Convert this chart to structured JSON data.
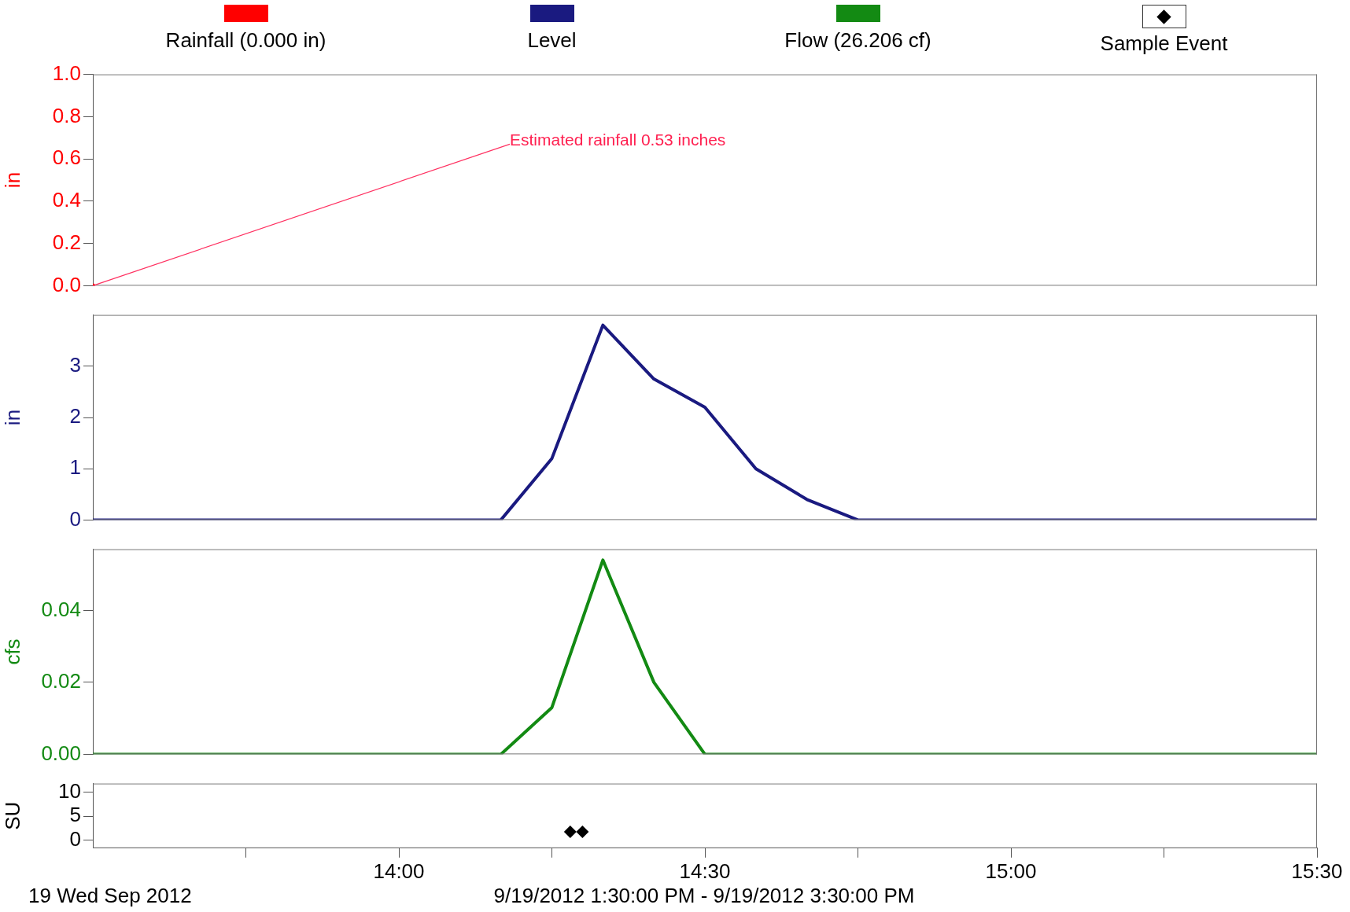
{
  "chart_data": [
    {
      "type": "line",
      "legend": "top",
      "grid": false,
      "tick_labels": "y",
      "xlim": [
        13.5,
        15.5
      ],
      "ylabel": "in",
      "ylim": [
        0,
        1.0
      ],
      "yticks": [
        {
          "value": 0,
          "label": "0.0"
        },
        {
          "value": 0.2,
          "label": "0.2"
        },
        {
          "value": 0.4,
          "label": "0.4"
        },
        {
          "value": 0.6,
          "label": "0.6"
        },
        {
          "value": 0.8,
          "label": "0.8"
        },
        {
          "value": 1,
          "label": "1.0"
        }
      ],
      "series": [
        {
          "name": "Rainfall (0.000 in)",
          "color": "#ff0000",
          "marker": "circle",
          "x": [
            13.5
          ],
          "values": [
            0
          ]
        }
      ],
      "annotations": [
        {
          "text": "Estimated rainfall 0.53 inches",
          "x": 13.5,
          "y": 0
        }
      ]
    },
    {
      "type": "line",
      "legend": "top",
      "grid": false,
      "tick_labels": "y",
      "xlim": [
        13.5,
        15.5
      ],
      "ylabel": "in",
      "ylim": [
        0,
        4
      ],
      "yticks": [
        0,
        1,
        2,
        3
      ],
      "series": [
        {
          "name": "Level",
          "color": "#1a1a80",
          "marker": "none",
          "x": [
            13.5,
            14.16667,
            14.25,
            14.33333,
            14.41667,
            14.5,
            14.58333,
            14.66667,
            14.75,
            15.5
          ],
          "values": [
            0,
            0,
            1.2,
            3.8,
            2.75,
            2.2,
            1.0,
            0.4,
            0,
            0
          ]
        }
      ]
    },
    {
      "type": "line",
      "legend": "top",
      "grid": false,
      "tick_labels": "y",
      "xlim": [
        13.5,
        15.5
      ],
      "ylabel": "cfs",
      "ylim": [
        0,
        0.057
      ],
      "yticks": [
        {
          "value": 0,
          "label": "0.00"
        },
        {
          "value": 0.02,
          "label": "0.02"
        },
        {
          "value": 0.04,
          "label": "0.04"
        }
      ],
      "series": [
        {
          "name": "Flow (26.206 cf)",
          "color": "#138a13",
          "marker": "none",
          "x": [
            13.5,
            14.16667,
            14.25,
            14.33333,
            14.41667,
            14.5,
            15.5
          ],
          "values": [
            0,
            0,
            0.013,
            0.054,
            0.02,
            0,
            0
          ]
        }
      ]
    },
    {
      "type": "scatter",
      "legend": "top",
      "grid": false,
      "xlim": [
        13.5,
        15.5
      ],
      "xticks": [
        {
          "value": 13.75,
          "label": null
        },
        {
          "value": 14,
          "label": "14:00"
        },
        {
          "value": 14.25,
          "label": null
        },
        {
          "value": 14.5,
          "label": "14:30"
        },
        {
          "value": 14.75,
          "label": null
        },
        {
          "value": 15,
          "label": "15:00"
        },
        {
          "value": 15.25,
          "label": null
        },
        {
          "value": 15.5,
          "label": "15:30"
        }
      ],
      "ylabel": "SU",
      "ylim": [
        -1.6,
        11.8
      ],
      "yticks": [
        0,
        5,
        10
      ],
      "series": [
        {
          "name": "Sample Event",
          "color": "#000000",
          "marker": "diamond",
          "x": [
            14.28,
            14.3
          ],
          "values": [
            1.8,
            1.8
          ]
        }
      ],
      "annotations": [
        "19 Wed Sep 2012",
        "9/19/2012 1:30:00 PM - 9/19/2012 3:30:00 PM"
      ]
    }
  ]
}
